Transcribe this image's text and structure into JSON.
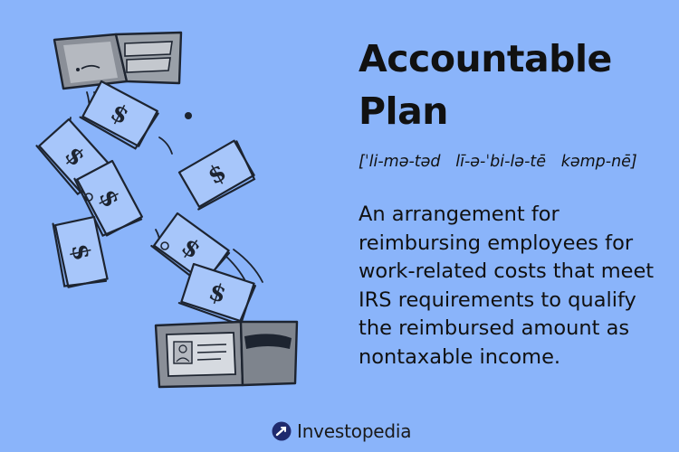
{
  "colors": {
    "background": "#8AB4FA",
    "text": "#111111",
    "bill": "#9BBEF8",
    "bill_outline": "#1D2430",
    "wallet": "#8A8F98",
    "wallet_light": "#C4C8CE",
    "brand_mark": "#1F2A6E"
  },
  "term": {
    "title": "Accountable Plan",
    "pronunciation": "[ˈli-mə-təd   lī-ə-ˈbi-lə-tē   kəmp-nē]",
    "definition": "An arrangement for reimbursing employees for work-related costs that meet IRS requirements to qualify the reimbursed amount as nontaxable income."
  },
  "illustration": {
    "icons": [
      "wallet-icon",
      "dollar-bill-icon",
      "wallet-with-id-card-icon"
    ]
  },
  "brand": {
    "name": "Investopedia",
    "logo_icon": "investopedia-logo-icon"
  }
}
